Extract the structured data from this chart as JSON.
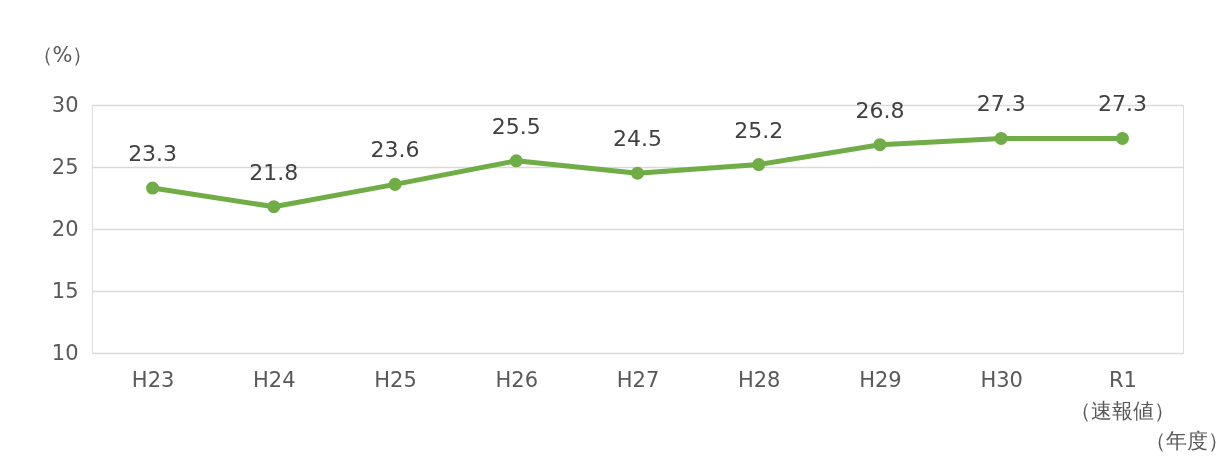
{
  "chart_data": {
    "type": "line",
    "ylabel": "（%）",
    "xlabel": "（年度）",
    "categories": [
      "H23",
      "H24",
      "H25",
      "H26",
      "H27",
      "H28",
      "H29",
      "H30",
      "R1\n（速報値）"
    ],
    "series": [
      {
        "color": "#70ad47",
        "values": [
          23.3,
          21.8,
          23.6,
          25.5,
          24.5,
          25.2,
          26.8,
          27.3,
          27.3
        ]
      }
    ],
    "ylim": [
      10,
      30
    ],
    "yticks": [
      10,
      15,
      20,
      25,
      30
    ],
    "grid": "y",
    "marker": "circle",
    "line_style": "solid",
    "data_labels": true
  }
}
